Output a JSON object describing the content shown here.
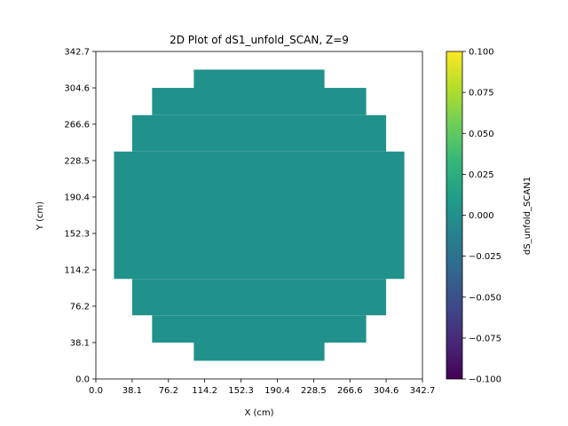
{
  "chart_data": {
    "type": "heatmap",
    "title": "2D Plot of dS1_unfold_SCAN, Z=9",
    "xlabel": "X (cm)",
    "ylabel": "Y (cm)",
    "xlim": [
      0.0,
      342.7
    ],
    "ylim": [
      0.0,
      342.7
    ],
    "x_ticks": [
      "0.0",
      "38.1",
      "76.2",
      "114.2",
      "152.3",
      "190.4",
      "228.5",
      "266.6",
      "304.6",
      "342.7"
    ],
    "y_ticks": [
      "0.0",
      "38.1",
      "76.2",
      "114.2",
      "152.3",
      "190.4",
      "228.5",
      "266.6",
      "304.6",
      "342.7"
    ],
    "grid": false,
    "cell_size_cm": 19.04,
    "value": 0.0,
    "fill_color": "#21918c",
    "row_spans": [
      {
        "y0": 19.04,
        "y1": 38.08,
        "x0": 102.8,
        "x1": 239.9
      },
      {
        "y0": 38.08,
        "y1": 66.64,
        "x0": 59.0,
        "x1": 283.7
      },
      {
        "y0": 66.64,
        "y1": 104.7,
        "x0": 38.1,
        "x1": 304.6
      },
      {
        "y0": 104.7,
        "y1": 238.0,
        "x0": 19.04,
        "x1": 323.7
      },
      {
        "y0": 238.0,
        "y1": 276.1,
        "x0": 38.1,
        "x1": 304.6
      },
      {
        "y0": 276.1,
        "y1": 304.6,
        "x0": 59.0,
        "x1": 283.7
      },
      {
        "y0": 304.6,
        "y1": 323.7,
        "x0": 102.8,
        "x1": 239.9
      }
    ],
    "colorbar": {
      "label": "dS_unfold_SCAN1",
      "min": -0.1,
      "max": 0.1,
      "ticks": [
        "0.100",
        "0.075",
        "0.050",
        "0.025",
        "0.000",
        "−0.025",
        "−0.050",
        "−0.075",
        "−0.100"
      ],
      "tick_values": [
        0.1,
        0.075,
        0.05,
        0.025,
        0.0,
        -0.025,
        -0.05,
        -0.075,
        -0.1
      ],
      "colormap_stops": [
        "#440154",
        "#482878",
        "#3e4989",
        "#31688e",
        "#26828e",
        "#1f9e89",
        "#35b779",
        "#6ece58",
        "#b5de2b",
        "#fde725"
      ]
    }
  }
}
